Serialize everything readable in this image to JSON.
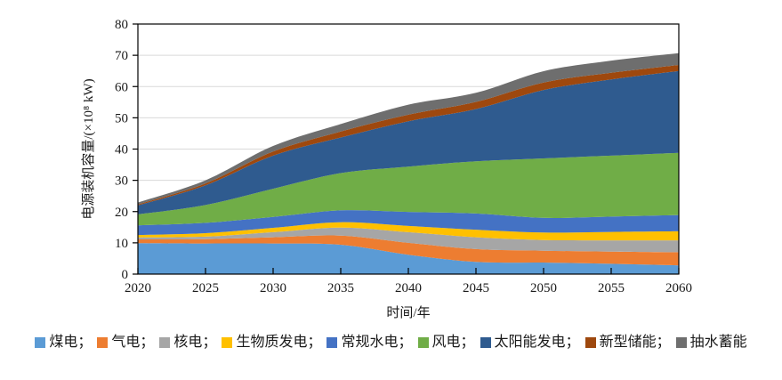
{
  "chart_data": {
    "type": "area",
    "stacked": true,
    "title": "",
    "xlabel": "时间/年",
    "ylabel": "电源装机容量/(×10⁸ kW)",
    "x": [
      2020,
      2025,
      2030,
      2035,
      2040,
      2045,
      2050,
      2055,
      2060
    ],
    "y_ticks": [
      0,
      10,
      20,
      30,
      40,
      50,
      60,
      70,
      80
    ],
    "ylim": [
      0,
      80
    ],
    "xlim": [
      2020,
      2060
    ],
    "grid": "horizontal",
    "gridline_color": "#d9d9d9",
    "axis_color": "#000000",
    "legend_position": "bottom",
    "legend_separator": "；",
    "series": [
      {
        "id": "coal",
        "name": "煤电",
        "color": "#5B9BD5",
        "values": [
          9.9,
          9.8,
          9.8,
          9.4,
          6.2,
          3.9,
          3.7,
          3.3,
          2.8
        ]
      },
      {
        "id": "gas",
        "name": "气电",
        "color": "#ED7D31",
        "values": [
          1.2,
          1.4,
          2.0,
          2.9,
          3.8,
          4.1,
          3.8,
          3.9,
          4.2
        ]
      },
      {
        "id": "nuclear",
        "name": "核电",
        "color": "#A6A6A6",
        "values": [
          0.6,
          0.8,
          1.6,
          2.6,
          3.4,
          3.8,
          3.4,
          3.6,
          3.8
        ]
      },
      {
        "id": "biomass",
        "name": "生物质发电",
        "color": "#FFC000",
        "values": [
          0.8,
          1.1,
          1.4,
          1.7,
          2.0,
          2.4,
          2.4,
          2.7,
          2.9
        ]
      },
      {
        "id": "hydro",
        "name": "常规水电",
        "color": "#4472C4",
        "values": [
          3.1,
          3.3,
          3.5,
          3.8,
          4.5,
          5.2,
          4.7,
          4.9,
          5.2
        ]
      },
      {
        "id": "wind",
        "name": "风电",
        "color": "#70AD47",
        "values": [
          3.5,
          5.7,
          9.0,
          11.9,
          14.5,
          16.7,
          19.0,
          19.5,
          19.9
        ]
      },
      {
        "id": "solar",
        "name": "太阳能发电",
        "color": "#2F5B8F",
        "values": [
          2.9,
          6.3,
          10.6,
          11.4,
          14.5,
          16.7,
          21.9,
          24.4,
          26.2
        ]
      },
      {
        "id": "storage",
        "name": "新型储能",
        "color": "#9E480E",
        "values": [
          0.3,
          0.6,
          1.3,
          1.9,
          2.1,
          2.3,
          2.4,
          2.1,
          1.9
        ]
      },
      {
        "id": "pumped",
        "name": "抽水蓄能",
        "color": "#6E6E6E",
        "values": [
          0.6,
          1.0,
          1.8,
          2.4,
          3.2,
          2.9,
          3.6,
          3.9,
          3.8
        ]
      }
    ]
  }
}
